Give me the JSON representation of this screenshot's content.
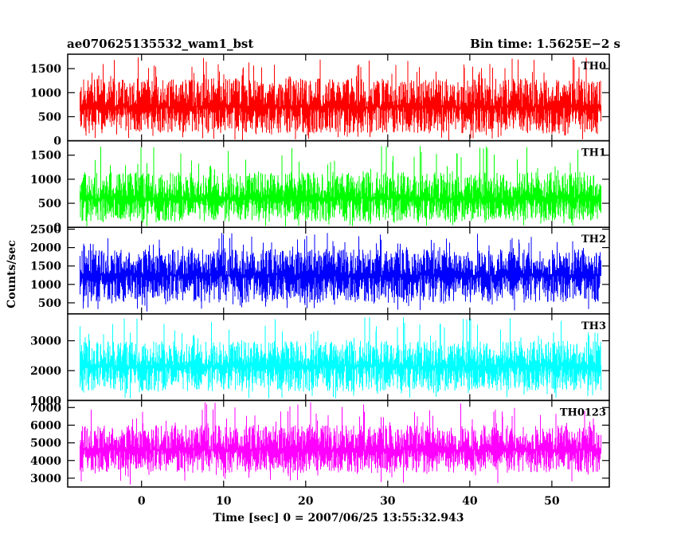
{
  "header": {
    "title": "ae070625135532_wam1_bst",
    "bin_time": "Bin time: 1.5625E−2 s"
  },
  "chart_data": {
    "type": "line",
    "title": "ae070625135532_wam1_bst",
    "xlabel": "Time [sec] 0 = 2007/06/25 13:55:32.943",
    "ylabel": "Counts/sec",
    "xlim": [
      -9,
      57
    ],
    "x_range_data": [
      -7.5,
      56
    ],
    "x_ticks": [
      0,
      10,
      20,
      30,
      40,
      50
    ],
    "x_tick_labels": [
      "0",
      "10",
      "20",
      "30",
      "40",
      "50"
    ],
    "grid": false,
    "legend": "none",
    "panels": [
      {
        "name": "TH0",
        "color": "#ff0000",
        "ylim": [
          0,
          1800
        ],
        "y_ticks": [
          0,
          500,
          1000,
          1500
        ],
        "y_tick_labels": [
          "0",
          "500",
          "1000",
          "1500"
        ],
        "mean": 700,
        "typical_min": 150,
        "typical_max": 1300,
        "extreme_min": 0,
        "extreme_max": 1750
      },
      {
        "name": "TH1",
        "color": "#00ff00",
        "ylim": [
          0,
          1800
        ],
        "y_ticks": [
          0,
          500,
          1000,
          1500
        ],
        "y_tick_labels": [
          "0",
          "500",
          "1000",
          "1500"
        ],
        "mean": 600,
        "typical_min": 120,
        "typical_max": 1150,
        "extreme_min": 20,
        "extreme_max": 1700
      },
      {
        "name": "TH2",
        "color": "#0000ff",
        "ylim": [
          200,
          2550
        ],
        "y_ticks": [
          500,
          1000,
          1500,
          2000,
          2500
        ],
        "y_tick_labels": [
          "500",
          "1000",
          "1500",
          "2000",
          "2500"
        ],
        "mean": 1250,
        "typical_min": 500,
        "typical_max": 1950,
        "extreme_min": 250,
        "extreme_max": 2400
      },
      {
        "name": "TH3",
        "color": "#00ffff",
        "ylim": [
          1000,
          3900
        ],
        "y_ticks": [
          1000,
          2000,
          3000
        ],
        "y_tick_labels": [
          "1000",
          "2000",
          "3000"
        ],
        "mean": 2150,
        "typical_min": 1300,
        "typical_max": 3000,
        "extreme_min": 1050,
        "extreme_max": 3800
      },
      {
        "name": "TH0123",
        "color": "#ff00ff",
        "ylim": [
          2500,
          7400
        ],
        "y_ticks": [
          3000,
          4000,
          5000,
          6000,
          7000
        ],
        "y_tick_labels": [
          "3000",
          "4000",
          "5000",
          "6000",
          "7000"
        ],
        "mean": 4600,
        "typical_min": 3300,
        "typical_max": 6000,
        "extreme_min": 2600,
        "extreme_max": 7300
      }
    ]
  }
}
